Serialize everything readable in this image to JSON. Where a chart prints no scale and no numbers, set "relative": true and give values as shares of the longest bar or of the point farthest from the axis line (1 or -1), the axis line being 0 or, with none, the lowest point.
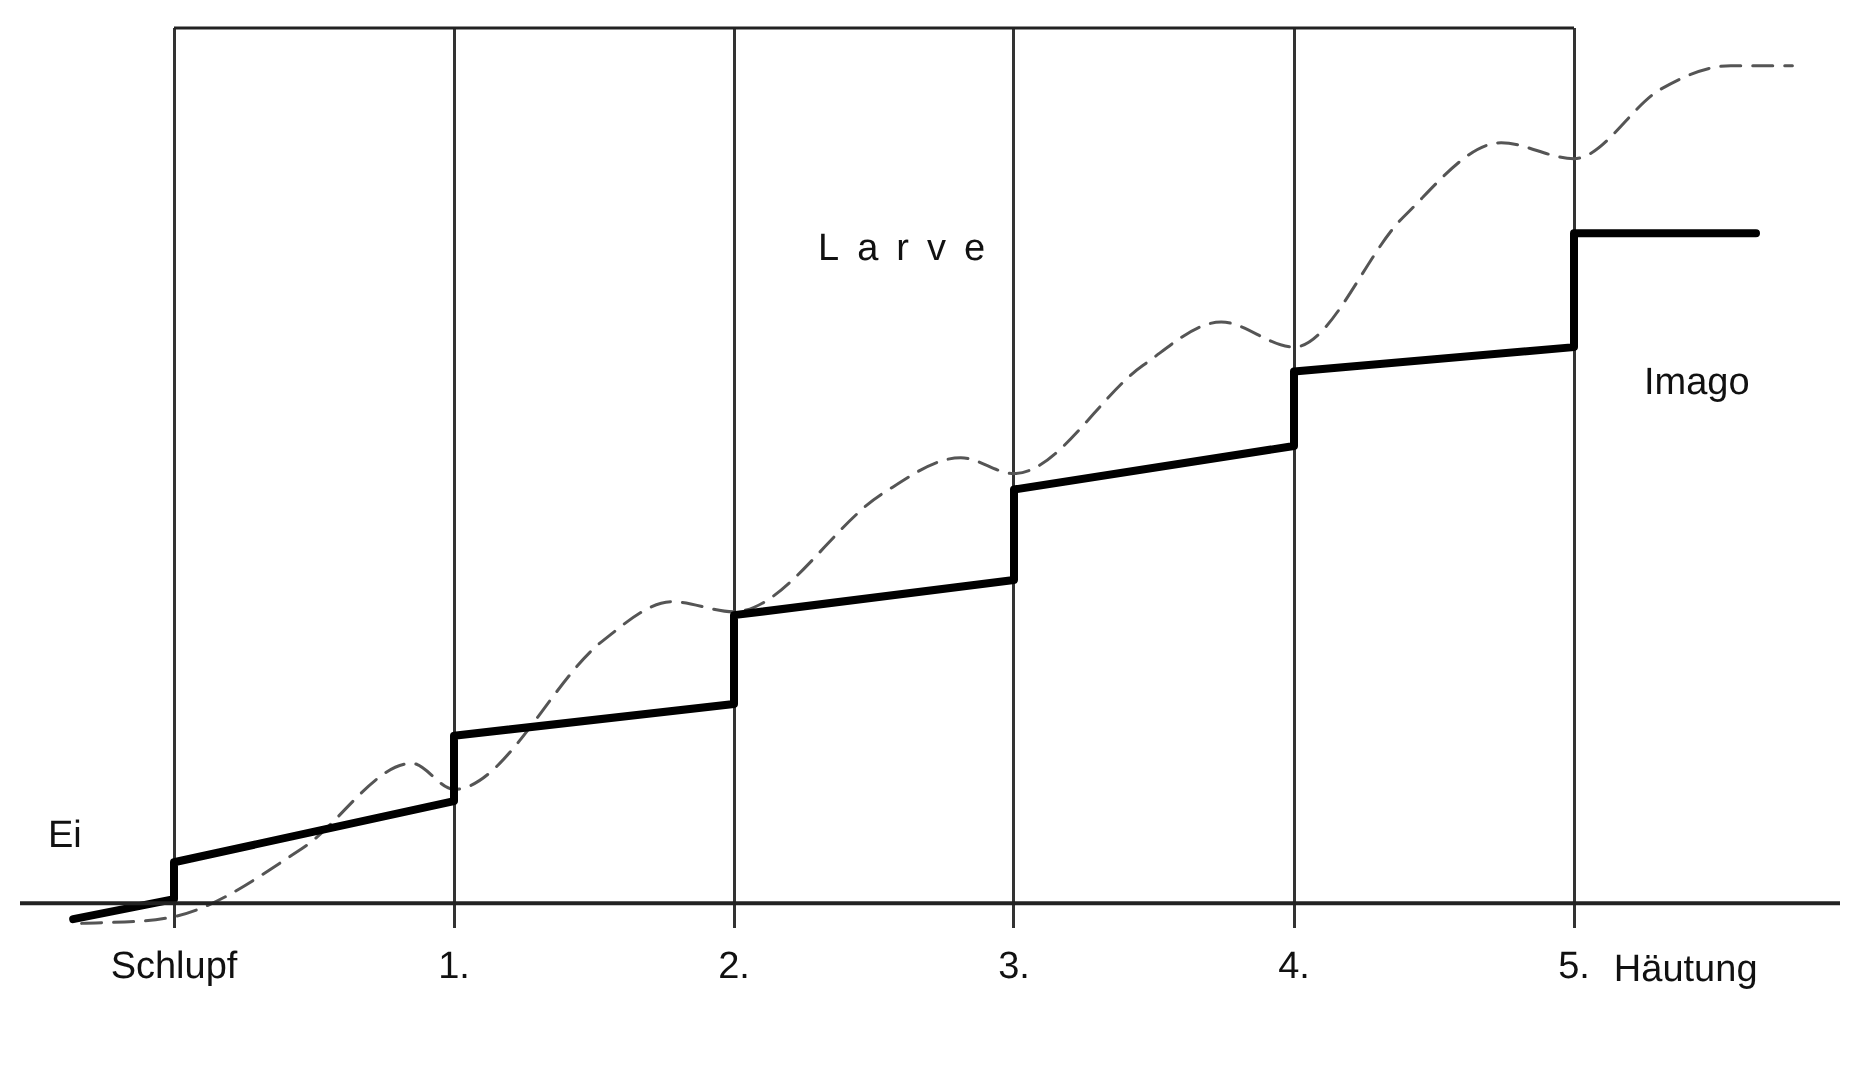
{
  "chart_data": {
    "type": "line",
    "relative": true,
    "xlabel": "Häutung",
    "annotations": [
      "Larve",
      "Ei",
      "Imago"
    ],
    "xlim": [
      -0.55,
      5.95
    ],
    "xticks": [
      {
        "value": 0,
        "label": "Schlupf"
      },
      {
        "value": 1,
        "label": "1."
      },
      {
        "value": 2,
        "label": "2."
      },
      {
        "value": 3,
        "label": "3."
      },
      {
        "value": 4,
        "label": "4."
      },
      {
        "value": 5,
        "label": "5."
      }
    ],
    "grid": "x",
    "legend": false,
    "marker": "none",
    "series": [
      {
        "color": "#000000",
        "line_style": "solid",
        "x": [
          -0.36,
          0,
          0,
          1,
          1,
          2,
          2,
          3,
          3,
          4,
          4,
          5,
          5,
          5.65
        ],
        "values": [
          -0.019,
          0.005,
          0.049,
          0.122,
          0.2,
          0.238,
          0.344,
          0.386,
          0.494,
          0.546,
          0.635,
          0.664,
          0.8,
          0.8
        ]
      },
      {
        "color": "#555555",
        "line_style": "dashed",
        "x": [
          -0.33,
          0,
          0.46,
          0.85,
          1,
          1.53,
          1.78,
          2,
          2.53,
          2.81,
          3,
          3.46,
          3.74,
          4,
          4.39,
          4.74,
          5,
          5.31,
          5.56,
          5.78
        ],
        "values": [
          -0.024,
          -0.016,
          0.066,
          0.167,
          0.136,
          0.313,
          0.36,
          0.348,
          0.489,
          0.532,
          0.513,
          0.642,
          0.694,
          0.664,
          0.819,
          0.908,
          0.889,
          0.972,
          1,
          1
        ]
      }
    ]
  }
}
